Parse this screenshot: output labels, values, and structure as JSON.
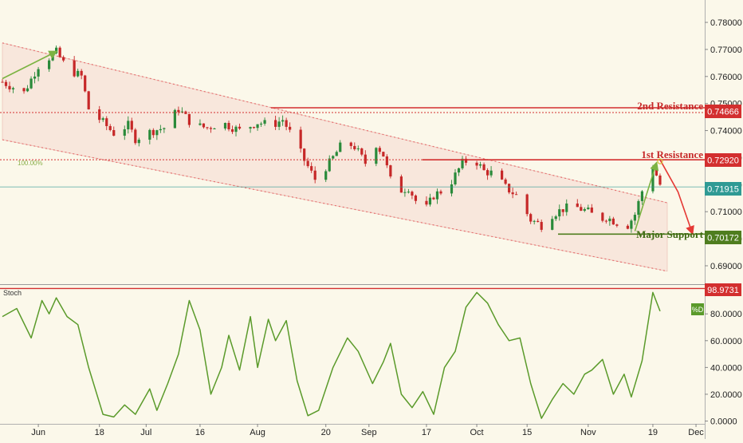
{
  "colors": {
    "background": "#fbf8ea",
    "candle_up": "#2a8a3a",
    "candle_down": "#c62828",
    "channel_fill": "#f5d9cf",
    "channel_line": "#e57373",
    "resistance": "#d32f2f",
    "support": "#4f7d1f",
    "current_price": "#2f9a94",
    "oscillator": "#5a9a2a",
    "arrow_green": "#7cb342",
    "arrow_red": "#e53935"
  },
  "chart_data": [
    {
      "type": "candlestick",
      "y_axis_ticks": [
        "0.78000",
        "0.77000",
        "0.76000",
        "0.75000",
        "0.74000",
        "0.73000",
        "0.72000",
        "0.71000",
        "0.70000",
        "0.69000"
      ],
      "x_axis_ticks": [
        "Jun",
        "18",
        "Jul",
        "16",
        "Aug",
        "20",
        "Sep",
        "17",
        "Oct",
        "15",
        "Nov",
        "19",
        "Dec"
      ],
      "ylim": [
        0.6835,
        0.7868
      ],
      "fib_label": "100.00%",
      "channel": {
        "upper": [
          {
            "date": "2018-05-22",
            "value": 0.7724
          },
          {
            "date": "2018-11-23",
            "value": 0.7133
          }
        ],
        "lower": [
          {
            "date": "2018-05-22",
            "value": 0.7366
          },
          {
            "date": "2018-11-23",
            "value": 0.688
          }
        ]
      },
      "levels": [
        {
          "name": "2nd Resistance",
          "value": 0.74666,
          "value_label": "0.74666",
          "kind": "resistance"
        },
        {
          "name": "1st Resistance",
          "value": 0.7292,
          "value_label": "0.72920",
          "kind": "resistance"
        },
        {
          "name": "Major Support",
          "value": 0.70172,
          "value_label": "0.70172",
          "kind": "support"
        }
      ],
      "current_price": {
        "value": 0.71915,
        "value_label": "0.71915"
      },
      "series": [
        {
          "name": "",
          "close_path": [
            {
              "date": "2018-05-22",
              "value": 0.758
            },
            {
              "date": "2018-05-28",
              "value": 0.754
            },
            {
              "date": "2018-06-01",
              "value": 0.764
            },
            {
              "date": "2018-06-06",
              "value": 0.769
            },
            {
              "date": "2018-06-09",
              "value": 0.763
            },
            {
              "date": "2018-06-13",
              "value": 0.76
            },
            {
              "date": "2018-06-15",
              "value": 0.748
            },
            {
              "date": "2018-06-19",
              "value": 0.743
            },
            {
              "date": "2018-06-22",
              "value": 0.739
            },
            {
              "date": "2018-06-26",
              "value": 0.742
            },
            {
              "date": "2018-06-28",
              "value": 0.737
            },
            {
              "date": "2018-07-03",
              "value": 0.74
            },
            {
              "date": "2018-07-06",
              "value": 0.741
            },
            {
              "date": "2018-07-10",
              "value": 0.748
            },
            {
              "date": "2018-07-14",
              "value": 0.742
            },
            {
              "date": "2018-07-18",
              "value": 0.741
            },
            {
              "date": "2018-07-22",
              "value": 0.743
            },
            {
              "date": "2018-07-27",
              "value": 0.74
            },
            {
              "date": "2018-08-01",
              "value": 0.743
            },
            {
              "date": "2018-08-05",
              "value": 0.742
            },
            {
              "date": "2018-08-08",
              "value": 0.744
            },
            {
              "date": "2018-08-11",
              "value": 0.737
            },
            {
              "date": "2018-08-14",
              "value": 0.729
            },
            {
              "date": "2018-08-17",
              "value": 0.722
            },
            {
              "date": "2018-08-21",
              "value": 0.728
            },
            {
              "date": "2018-08-25",
              "value": 0.736
            },
            {
              "date": "2018-08-28",
              "value": 0.734
            },
            {
              "date": "2018-08-31",
              "value": 0.728
            },
            {
              "date": "2018-09-03",
              "value": 0.735
            },
            {
              "date": "2018-09-05",
              "value": 0.731
            },
            {
              "date": "2018-09-08",
              "value": 0.717
            },
            {
              "date": "2018-09-12",
              "value": 0.719
            },
            {
              "date": "2018-09-16",
              "value": 0.709
            },
            {
              "date": "2018-09-19",
              "value": 0.716
            },
            {
              "date": "2018-09-23",
              "value": 0.719
            },
            {
              "date": "2018-09-27",
              "value": 0.728
            },
            {
              "date": "2018-09-30",
              "value": 0.73
            },
            {
              "date": "2018-10-03",
              "value": 0.725
            },
            {
              "date": "2018-10-06",
              "value": 0.724
            },
            {
              "date": "2018-10-09",
              "value": 0.719
            },
            {
              "date": "2018-10-12",
              "value": 0.716
            },
            {
              "date": "2018-10-16",
              "value": 0.707
            },
            {
              "date": "2018-10-19",
              "value": 0.705
            },
            {
              "date": "2018-10-22",
              "value": 0.709
            },
            {
              "date": "2018-10-25",
              "value": 0.711
            },
            {
              "date": "2018-10-28",
              "value": 0.712
            },
            {
              "date": "2018-11-01",
              "value": 0.71
            },
            {
              "date": "2018-11-04",
              "value": 0.707
            },
            {
              "date": "2018-11-06",
              "value": 0.708
            },
            {
              "date": "2018-11-09",
              "value": 0.706
            },
            {
              "date": "2018-11-12",
              "value": 0.705
            },
            {
              "date": "2018-11-14",
              "value": 0.709
            },
            {
              "date": "2018-11-17",
              "value": 0.722
            },
            {
              "date": "2018-11-19",
              "value": 0.727
            },
            {
              "date": "2018-11-21",
              "value": 0.72
            }
          ]
        }
      ],
      "annotations": {
        "green_arrows": [
          [
            {
              "date": "2018-05-22",
              "value": 0.7592
            },
            {
              "date": "2018-06-06",
              "value": 0.7692
            }
          ],
          [
            {
              "date": "2018-11-14",
              "value": 0.7028
            },
            {
              "date": "2018-11-20",
              "value": 0.728
            }
          ]
        ],
        "red_arrow": [
          {
            "date": "2018-11-21",
            "value": 0.7292
          },
          {
            "date": "2018-11-26",
            "value": 0.7173
          },
          {
            "date": "2018-11-30",
            "value": 0.702
          }
        ]
      }
    },
    {
      "type": "line",
      "label": "Stoch",
      "legend": "%D",
      "y_axis_ticks": [
        "80.0000",
        "60.0000",
        "40.0000",
        "20.0000",
        "0.0000"
      ],
      "ylim": [
        -1.5,
        101
      ],
      "marker_line": {
        "value": 98.9731,
        "value_label": "98.9731"
      },
      "series": [
        {
          "name": "",
          "values": [
            {
              "date": "2018-05-22",
              "value": 78
            },
            {
              "date": "2018-05-26",
              "value": 84
            },
            {
              "date": "2018-05-30",
              "value": 62
            },
            {
              "date": "2018-06-02",
              "value": 90
            },
            {
              "date": "2018-06-04",
              "value": 80
            },
            {
              "date": "2018-06-06",
              "value": 92
            },
            {
              "date": "2018-06-09",
              "value": 78
            },
            {
              "date": "2018-06-12",
              "value": 72
            },
            {
              "date": "2018-06-15",
              "value": 40
            },
            {
              "date": "2018-06-19",
              "value": 5
            },
            {
              "date": "2018-06-22",
              "value": 3
            },
            {
              "date": "2018-06-25",
              "value": 12
            },
            {
              "date": "2018-06-28",
              "value": 5
            },
            {
              "date": "2018-07-02",
              "value": 24
            },
            {
              "date": "2018-07-04",
              "value": 8
            },
            {
              "date": "2018-07-07",
              "value": 28
            },
            {
              "date": "2018-07-10",
              "value": 50
            },
            {
              "date": "2018-07-13",
              "value": 90
            },
            {
              "date": "2018-07-16",
              "value": 68
            },
            {
              "date": "2018-07-19",
              "value": 20
            },
            {
              "date": "2018-07-22",
              "value": 40
            },
            {
              "date": "2018-07-24",
              "value": 64
            },
            {
              "date": "2018-07-27",
              "value": 38
            },
            {
              "date": "2018-07-30",
              "value": 78
            },
            {
              "date": "2018-08-01",
              "value": 40
            },
            {
              "date": "2018-08-04",
              "value": 76
            },
            {
              "date": "2018-08-06",
              "value": 60
            },
            {
              "date": "2018-08-09",
              "value": 75
            },
            {
              "date": "2018-08-12",
              "value": 30
            },
            {
              "date": "2018-08-15",
              "value": 4
            },
            {
              "date": "2018-08-18",
              "value": 8
            },
            {
              "date": "2018-08-22",
              "value": 40
            },
            {
              "date": "2018-08-26",
              "value": 62
            },
            {
              "date": "2018-08-29",
              "value": 52
            },
            {
              "date": "2018-09-02",
              "value": 28
            },
            {
              "date": "2018-09-05",
              "value": 44
            },
            {
              "date": "2018-09-07",
              "value": 58
            },
            {
              "date": "2018-09-10",
              "value": 20
            },
            {
              "date": "2018-09-13",
              "value": 10
            },
            {
              "date": "2018-09-16",
              "value": 22
            },
            {
              "date": "2018-09-19",
              "value": 5
            },
            {
              "date": "2018-09-22",
              "value": 40
            },
            {
              "date": "2018-09-25",
              "value": 52
            },
            {
              "date": "2018-09-28",
              "value": 85
            },
            {
              "date": "2018-10-01",
              "value": 96
            },
            {
              "date": "2018-10-04",
              "value": 88
            },
            {
              "date": "2018-10-07",
              "value": 72
            },
            {
              "date": "2018-10-10",
              "value": 60
            },
            {
              "date": "2018-10-13",
              "value": 62
            },
            {
              "date": "2018-10-16",
              "value": 28
            },
            {
              "date": "2018-10-19",
              "value": 2
            },
            {
              "date": "2018-10-22",
              "value": 16
            },
            {
              "date": "2018-10-25",
              "value": 28
            },
            {
              "date": "2018-10-28",
              "value": 20
            },
            {
              "date": "2018-10-31",
              "value": 35
            },
            {
              "date": "2018-11-02",
              "value": 38
            },
            {
              "date": "2018-11-05",
              "value": 46
            },
            {
              "date": "2018-11-08",
              "value": 20
            },
            {
              "date": "2018-11-11",
              "value": 35
            },
            {
              "date": "2018-11-13",
              "value": 18
            },
            {
              "date": "2018-11-16",
              "value": 45
            },
            {
              "date": "2018-11-19",
              "value": 96
            },
            {
              "date": "2018-11-21",
              "value": 82
            }
          ]
        }
      ]
    }
  ]
}
